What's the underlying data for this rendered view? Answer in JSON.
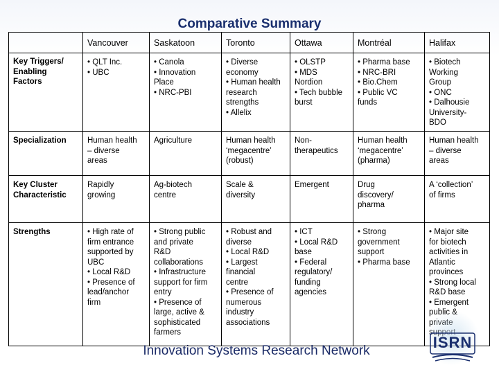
{
  "title": "Comparative Summary",
  "cities": [
    "Vancouver",
    "Saskatoon",
    "Toronto",
    "Ottawa",
    "Montréal",
    "Halifax"
  ],
  "rows": [
    {
      "label": [
        "Key Triggers/",
        "Enabling",
        "Factors"
      ],
      "cells": [
        [
          "• QLT Inc.",
          "• UBC"
        ],
        [
          "• Canola",
          "• Innovation",
          "Place",
          "• NRC-PBI"
        ],
        [
          "• Diverse",
          "economy",
          "• Human health",
          "research",
          "strengths",
          "• Allelix"
        ],
        [
          "• OLSTP",
          "• MDS",
          "Nordion",
          "• Tech bubble",
          "burst"
        ],
        [
          "• Pharma base",
          "• NRC-BRI",
          "• Bio.Chem",
          "• Public VC",
          "funds"
        ],
        [
          "• Biotech",
          "Working",
          "Group",
          "• ONC",
          "• Dalhousie",
          "University-",
          "BDO"
        ]
      ]
    },
    {
      "label": [
        "Specialization"
      ],
      "cells": [
        [
          "Human health",
          "– diverse",
          "areas"
        ],
        [
          "Agriculture"
        ],
        [
          "Human health",
          "‘megacentre’",
          "(robust)"
        ],
        [
          "Non-",
          "therapeutics"
        ],
        [
          "Human health",
          "‘megacentre’",
          "(pharma)"
        ],
        [
          "Human health",
          "– diverse",
          "areas"
        ]
      ]
    },
    {
      "label": [
        "Key Cluster",
        "Characteristic"
      ],
      "cells": [
        [
          "Rapidly",
          "growing"
        ],
        [
          "Ag-biotech",
          "centre"
        ],
        [
          "Scale &",
          "diversity"
        ],
        [
          "Emergent"
        ],
        [
          "Drug",
          "discovery/",
          "pharma"
        ],
        [
          "A ‘collection’",
          "of firms"
        ]
      ]
    },
    {
      "label": [
        "Strengths"
      ],
      "cells": [
        [
          "• High rate of",
          "firm entrance",
          "supported by",
          "UBC",
          "• Local R&D",
          "• Presence of",
          "lead/anchor",
          "firm"
        ],
        [
          "• Strong public",
          "and private",
          "R&D",
          "collaborations",
          "• Infrastructure",
          "support for firm",
          "entry",
          "• Presence of",
          "large, active &",
          "sophisticated",
          "farmers"
        ],
        [
          "• Robust and",
          "diverse",
          "• Local R&D",
          "• Largest",
          "financial",
          "centre",
          "• Presence of",
          "numerous",
          "industry",
          "associations"
        ],
        [
          "• ICT",
          "• Local R&D",
          "base",
          "• Federal",
          "regulatory/",
          "funding",
          "agencies"
        ],
        [
          "• Strong",
          "government",
          "support",
          "• Pharma base"
        ],
        [
          "• Major site",
          "for biotech",
          "activities in",
          "Atlantic",
          "provinces",
          "• Strong local",
          "R&D base",
          "• Emergent",
          "public &",
          "private",
          "support"
        ]
      ]
    }
  ],
  "footer": "Innovation Systems Research Network",
  "logo_text": "ISRN",
  "colors": {
    "title": "#1a2f6e",
    "footer": "#1a2a66",
    "border": "#000000"
  }
}
